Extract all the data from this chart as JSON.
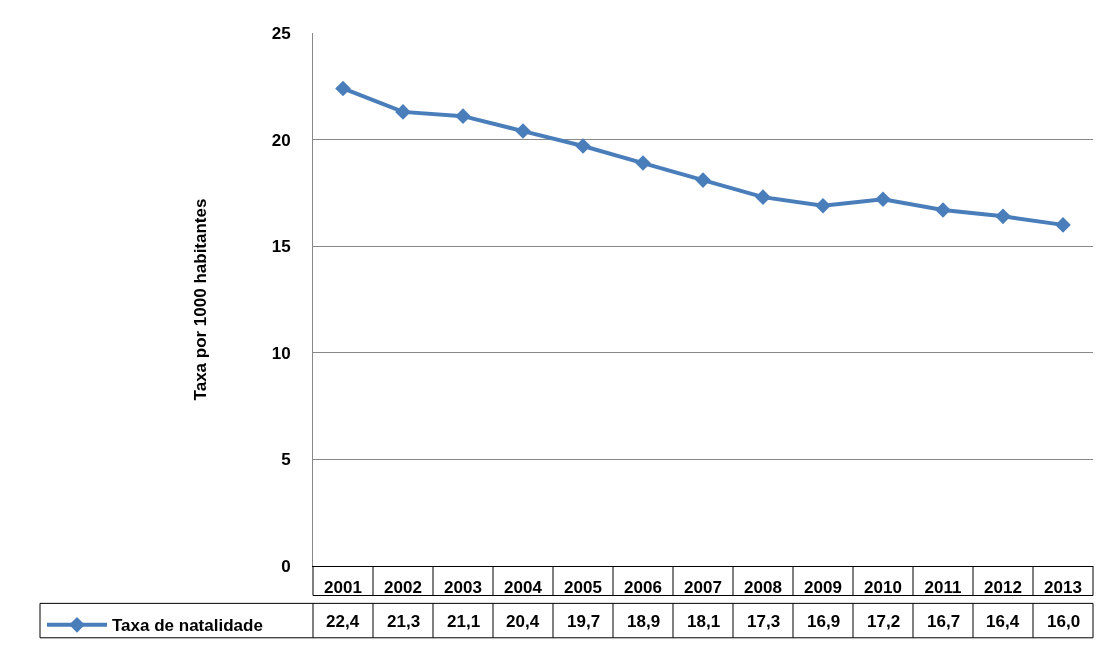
{
  "chart_data": {
    "type": "line",
    "ylabel": "Taxa por 1000 habitantes",
    "categories": [
      "2001",
      "2002",
      "2003",
      "2004",
      "2005",
      "2006",
      "2007",
      "2008",
      "2009",
      "2010",
      "2011",
      "2012",
      "2013"
    ],
    "series": [
      {
        "name": "Taxa de natalidade",
        "color": "#4a7ebb",
        "values": [
          22.4,
          21.3,
          21.1,
          20.4,
          19.7,
          18.9,
          18.1,
          17.3,
          16.9,
          17.2,
          16.7,
          16.4,
          16.0
        ],
        "value_labels": [
          "22,4",
          "21,3",
          "21,1",
          "20,4",
          "19,7",
          "18,9",
          "18,1",
          "17,3",
          "16,9",
          "17,2",
          "16,7",
          "16,4",
          "16,0"
        ]
      }
    ],
    "ylim": [
      0,
      25
    ],
    "yticks": [
      0,
      5,
      10,
      15,
      20,
      25
    ],
    "grid": "y",
    "legend": "bottom left",
    "marker": "diamond",
    "line_style": "solid"
  }
}
